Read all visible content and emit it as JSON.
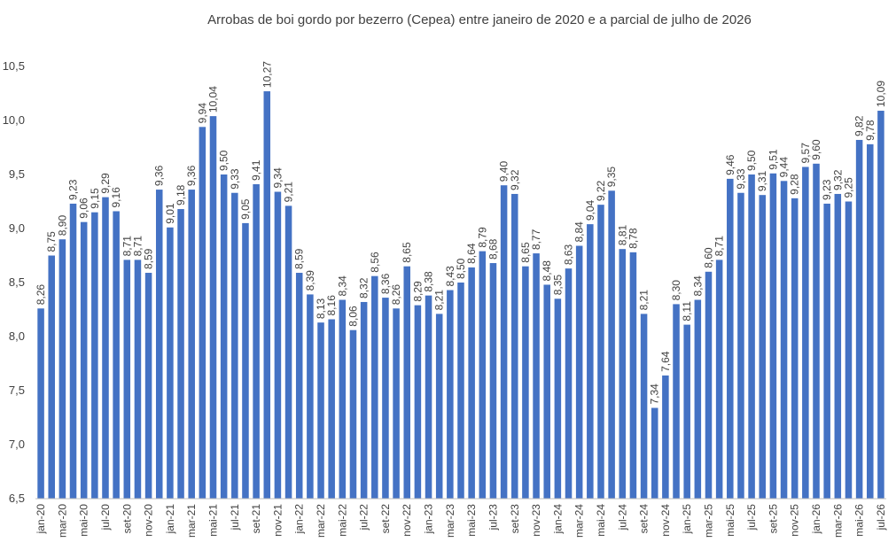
{
  "chart_data": {
    "type": "bar",
    "title": "Arrobas de boi gordo por bezerro (Cepea) entre janeiro de 2020 e a parcial de julho de 2026",
    "xlabel": "",
    "ylabel": "",
    "ylim": [
      6.5,
      10.5
    ],
    "yticks": [
      "6,5",
      "7,0",
      "7,5",
      "8,0",
      "8,5",
      "9,0",
      "9,5",
      "10,0",
      "10,5"
    ],
    "grid": false,
    "legend": "none",
    "bar_color": "#4472C4",
    "categories": [
      "jan-20",
      "fev-20",
      "mar-20",
      "abr-20",
      "mai-20",
      "jun-20",
      "jul-20",
      "ago-20",
      "set-20",
      "out-20",
      "nov-20",
      "dez-20",
      "jan-21",
      "fev-21",
      "mar-21",
      "abr-21",
      "mai-21",
      "jun-21",
      "jul-21",
      "ago-21",
      "set-21",
      "out-21",
      "nov-21",
      "dez-21",
      "jan-22",
      "fev-22",
      "mar-22",
      "abr-22",
      "mai-22",
      "jun-22",
      "jul-22",
      "ago-22",
      "set-22",
      "out-22",
      "nov-22",
      "dez-22",
      "jan-23",
      "fev-23",
      "mar-23",
      "abr-23",
      "mai-23",
      "jun-23",
      "jul-23",
      "ago-23",
      "set-23",
      "out-23",
      "nov-23",
      "dez-23",
      "jan-24",
      "fev-24",
      "mar-24",
      "abr-24",
      "mai-24",
      "jun-24",
      "jul-24",
      "ago-24",
      "set-24",
      "out-24",
      "nov-24",
      "dez-24",
      "jan-25",
      "fev-25",
      "mar-25",
      "abr-25",
      "mai-25",
      "jun-25",
      "jul-25",
      "ago-25",
      "set-25",
      "out-25",
      "nov-25",
      "dez-25",
      "jan-26",
      "fev-26",
      "mar-26",
      "abr-26",
      "mai-26",
      "jun-26",
      "jul-26"
    ],
    "shown_xticks": [
      "jan-20",
      "mar-20",
      "mai-20",
      "jul-20",
      "set-20",
      "nov-20",
      "jan-21",
      "mar-21",
      "mai-21",
      "jul-21",
      "set-21",
      "nov-21",
      "jan-22",
      "mar-22",
      "mai-22",
      "jul-22",
      "set-22",
      "nov-22",
      "jan-23",
      "mar-23",
      "mai-23",
      "jul-23",
      "set-23",
      "nov-23",
      "jan-24",
      "mar-24",
      "mai-24",
      "jul-24",
      "set-24",
      "nov-24",
      "jan-25",
      "mar-25",
      "mai-25",
      "jul-25",
      "set-25",
      "nov-25",
      "jan-26",
      "mar-26",
      "mai-26",
      "jul-26"
    ],
    "values": [
      8.26,
      8.75,
      8.9,
      9.23,
      9.06,
      9.15,
      9.29,
      9.16,
      8.71,
      8.71,
      8.59,
      9.36,
      9.01,
      9.18,
      9.36,
      9.94,
      10.04,
      9.5,
      9.33,
      9.05,
      9.41,
      10.27,
      9.34,
      9.21,
      8.59,
      8.39,
      8.13,
      8.16,
      8.34,
      8.06,
      8.32,
      8.56,
      8.36,
      8.26,
      8.65,
      8.29,
      8.38,
      8.21,
      8.43,
      8.5,
      8.64,
      8.79,
      8.68,
      9.4,
      9.32,
      8.65,
      8.77,
      8.48,
      8.35,
      8.63,
      8.84,
      9.04,
      9.22,
      9.35,
      8.81,
      8.78,
      8.21,
      7.34,
      7.64,
      8.3,
      8.11,
      8.34,
      8.6,
      8.71,
      9.46,
      9.33,
      9.5,
      9.31,
      9.51,
      9.44,
      9.28,
      9.57,
      9.6,
      9.23,
      9.32,
      9.25,
      9.82,
      9.78,
      10.09
    ],
    "labels": [
      "8,26",
      "8,75",
      "8,90",
      "9,23",
      "9,06",
      "9,15",
      "9,29",
      "9,16",
      "8,71",
      "8,71",
      "8,59",
      "9,36",
      "9,01",
      "9,18",
      "9,36",
      "9,94",
      "10,04",
      "9,50",
      "9,33",
      "9,05",
      "9,41",
      "10,27",
      "9,34",
      "9,21",
      "8,59",
      "8,39",
      "8,13",
      "8,16",
      "8,34",
      "8,06",
      "8,32",
      "8,56",
      "8,36",
      "8,26",
      "8,65",
      "8,29",
      "8,38",
      "8,21",
      "8,43",
      "8,50",
      "8,64",
      "8,79",
      "8,68",
      "9,40",
      "9,32",
      "8,65",
      "8,77",
      "8,48",
      "8,35",
      "8,63",
      "8,84",
      "9,04",
      "9,22",
      "9,35",
      "8,81",
      "8,78",
      "8,21",
      "7,34",
      "7,64",
      "8,30",
      "8,11",
      "8,34",
      "8,60",
      "8,71",
      "9,46",
      "9,33",
      "9,50",
      "9,31",
      "9,51",
      "9,44",
      "9,28",
      "9,57",
      "9,60",
      "9,23",
      "9,32",
      "9,25",
      "9,82",
      "9,78",
      "10,09"
    ]
  }
}
